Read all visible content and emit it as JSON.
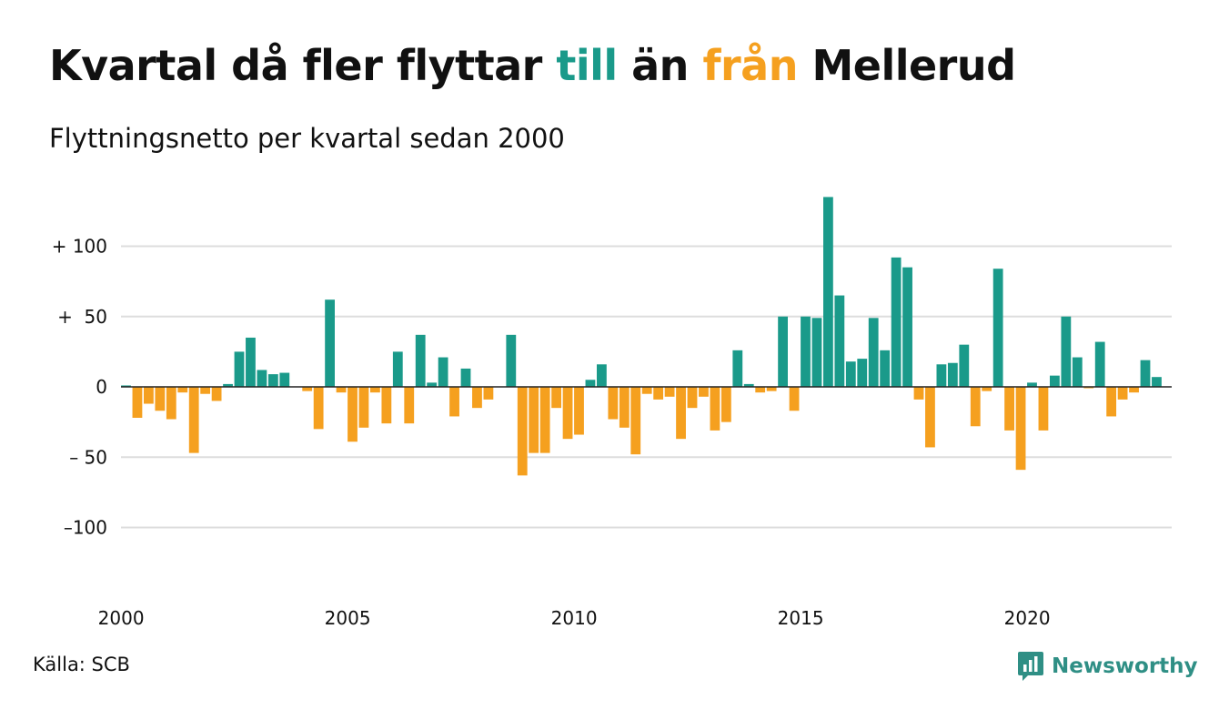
{
  "header": {
    "title_part1": "Kvartal då fler flyttar ",
    "title_till": "till",
    "title_part2": " än ",
    "title_fran": "från",
    "title_part3": " Mellerud",
    "subtitle": "Flyttningsnetto per kvartal sedan 2000"
  },
  "footer": {
    "source": "Källa: SCB",
    "brand": "Newsworthy"
  },
  "colors": {
    "positive": "#1a9a8a",
    "negative": "#f5a01f",
    "grid": "#dddddd",
    "baseline": "#222222",
    "brand": "#2f8f85"
  },
  "chart_data": {
    "type": "bar",
    "title": "Kvartal då fler flyttar till än från Mellerud",
    "subtitle": "Flyttningsnetto per kvartal sedan 2000",
    "start_year": 2000,
    "periods_per_year": 4,
    "x_tick_labels": [
      "2000",
      "2005",
      "2010",
      "2015",
      "2020"
    ],
    "y_ticks": [
      {
        "value": 100,
        "label": "+ 100"
      },
      {
        "value": 50,
        "label": "+  50"
      },
      {
        "value": 0,
        "label": "0"
      },
      {
        "value": -50,
        "label": "– 50"
      },
      {
        "value": -100,
        "label": "–100"
      }
    ],
    "ylim": [
      -145,
      148
    ],
    "grid": true,
    "values": [
      1,
      -22,
      -12,
      -17,
      -23,
      -4,
      -47,
      -5,
      -10,
      2,
      25,
      35,
      12,
      9,
      10,
      0,
      -3,
      -30,
      62,
      -4,
      -39,
      -29,
      -4,
      -26,
      25,
      -26,
      37,
      3,
      21,
      -21,
      13,
      -15,
      -9,
      0,
      37,
      -63,
      -47,
      -47,
      -15,
      -37,
      -34,
      5,
      16,
      -23,
      -29,
      -48,
      -5,
      -9,
      -7,
      -37,
      -15,
      -7,
      -31,
      -25,
      26,
      2,
      -4,
      -3,
      50,
      -17,
      50,
      49,
      135,
      65,
      18,
      20,
      49,
      26,
      92,
      85,
      -9,
      -43,
      16,
      17,
      30,
      -28,
      -3,
      84,
      -31,
      -59,
      3,
      -31,
      8,
      50,
      21,
      -1,
      32,
      -21,
      -9,
      -4,
      19,
      7
    ]
  }
}
